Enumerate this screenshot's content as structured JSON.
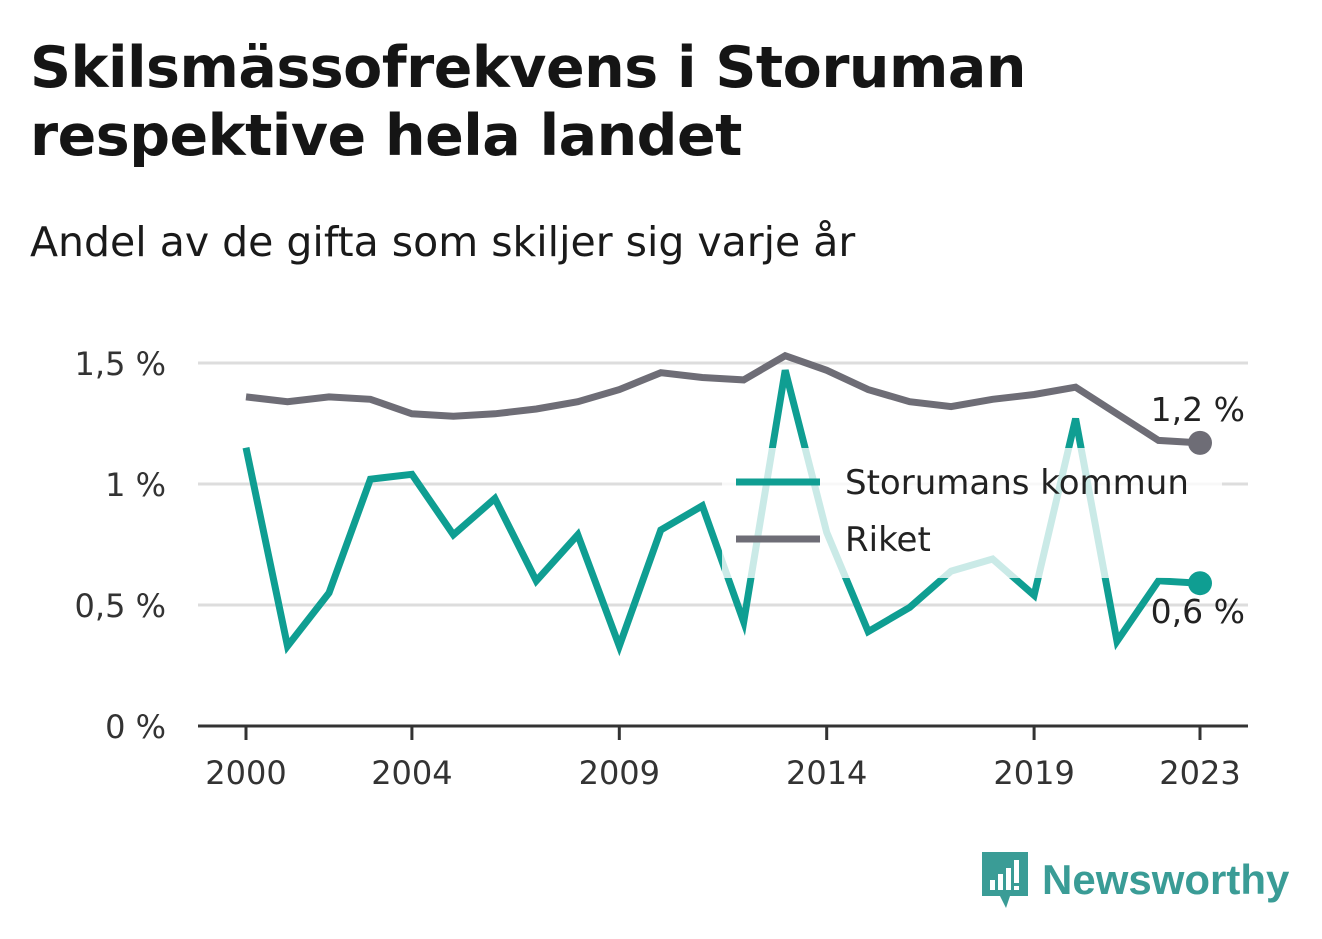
{
  "title": "Skilsmässofrekvens i Storuman respektive hela landet",
  "subtitle": "Andel av de gifta som skiljer sig varje år",
  "brand": "Newsworthy",
  "colors": {
    "storuman": "#0f9e92",
    "riket": "#6e6d76",
    "grid": "#dddddd",
    "axis": "#333333"
  },
  "chart_data": {
    "type": "line",
    "x": [
      2000,
      2001,
      2002,
      2003,
      2004,
      2005,
      2006,
      2007,
      2008,
      2009,
      2010,
      2011,
      2012,
      2013,
      2014,
      2015,
      2016,
      2017,
      2018,
      2019,
      2020,
      2021,
      2022,
      2023
    ],
    "x_ticks": [
      "2000",
      "2004",
      "2009",
      "2014",
      "2019",
      "2023"
    ],
    "y_ticks": [
      "0 %",
      "0,5 %",
      "1 %",
      "1,5 %"
    ],
    "y_tick_values": [
      0,
      0.5,
      1,
      1.5
    ],
    "ylim": [
      0,
      1.5
    ],
    "grid": true,
    "legend_position": "right",
    "series": [
      {
        "name": "Storumans kommun",
        "values": [
          1.15,
          0.33,
          0.55,
          1.02,
          1.04,
          0.79,
          0.94,
          0.6,
          0.79,
          0.33,
          0.81,
          0.91,
          0.43,
          1.47,
          0.8,
          0.39,
          0.49,
          0.64,
          0.69,
          0.54,
          1.27,
          0.35,
          0.6,
          0.59
        ],
        "end_label": "0,6 %"
      },
      {
        "name": "Riket",
        "values": [
          1.36,
          1.34,
          1.36,
          1.35,
          1.29,
          1.28,
          1.29,
          1.31,
          1.34,
          1.39,
          1.46,
          1.44,
          1.43,
          1.53,
          1.47,
          1.39,
          1.34,
          1.32,
          1.35,
          1.37,
          1.4,
          1.29,
          1.18,
          1.17
        ],
        "end_label": "1,2 %"
      }
    ]
  }
}
